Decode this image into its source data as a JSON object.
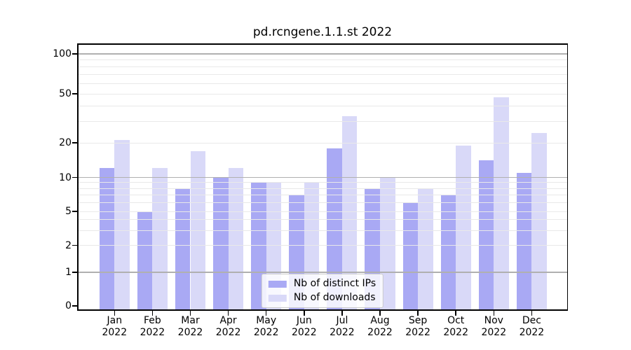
{
  "chart_data": {
    "type": "bar",
    "title": "pd.rcngene.1.1.st 2022",
    "categories": [
      "Jan",
      "Feb",
      "Mar",
      "Apr",
      "May",
      "Jun",
      "Jul",
      "Aug",
      "Sep",
      "Oct",
      "Nov",
      "Dec"
    ],
    "x_year_label": "2022",
    "series": [
      {
        "name": "Nb of distinct IPs",
        "color": "#a9a9f4",
        "values": [
          12,
          5,
          8,
          10,
          9,
          7,
          18,
          8,
          6,
          7,
          14,
          11
        ]
      },
      {
        "name": "Nb of downloads",
        "color": "#d9d9f8",
        "values": [
          21,
          12,
          17,
          12,
          9,
          9,
          33,
          10,
          8,
          19,
          47,
          24
        ]
      }
    ],
    "xlabel": "",
    "ylabel": "",
    "yscale": "symlog",
    "ylim": [
      0,
      120
    ],
    "ytick_labels": [
      "0",
      "1",
      "2",
      "5",
      "10",
      "20",
      "50",
      "100"
    ],
    "ytick_values": [
      0,
      1,
      2,
      5,
      10,
      20,
      50,
      100
    ],
    "major_grid_values": [
      1,
      10,
      100
    ],
    "minor_grid_values": [
      2,
      3,
      4,
      5,
      6,
      7,
      8,
      9,
      20,
      30,
      40,
      50,
      60,
      70,
      80,
      90
    ],
    "grid": true,
    "legend_position": "lower center"
  },
  "colors": {
    "bar_distinct_ips": "#a9a9f4",
    "bar_downloads": "#d9d9f8",
    "major_grid": "#b0b0b0",
    "minor_grid": "#e9e9e9",
    "axis": "#000000",
    "legend_border": "#cccccc",
    "legend_background": "rgba(255,255,255,0.82)"
  }
}
